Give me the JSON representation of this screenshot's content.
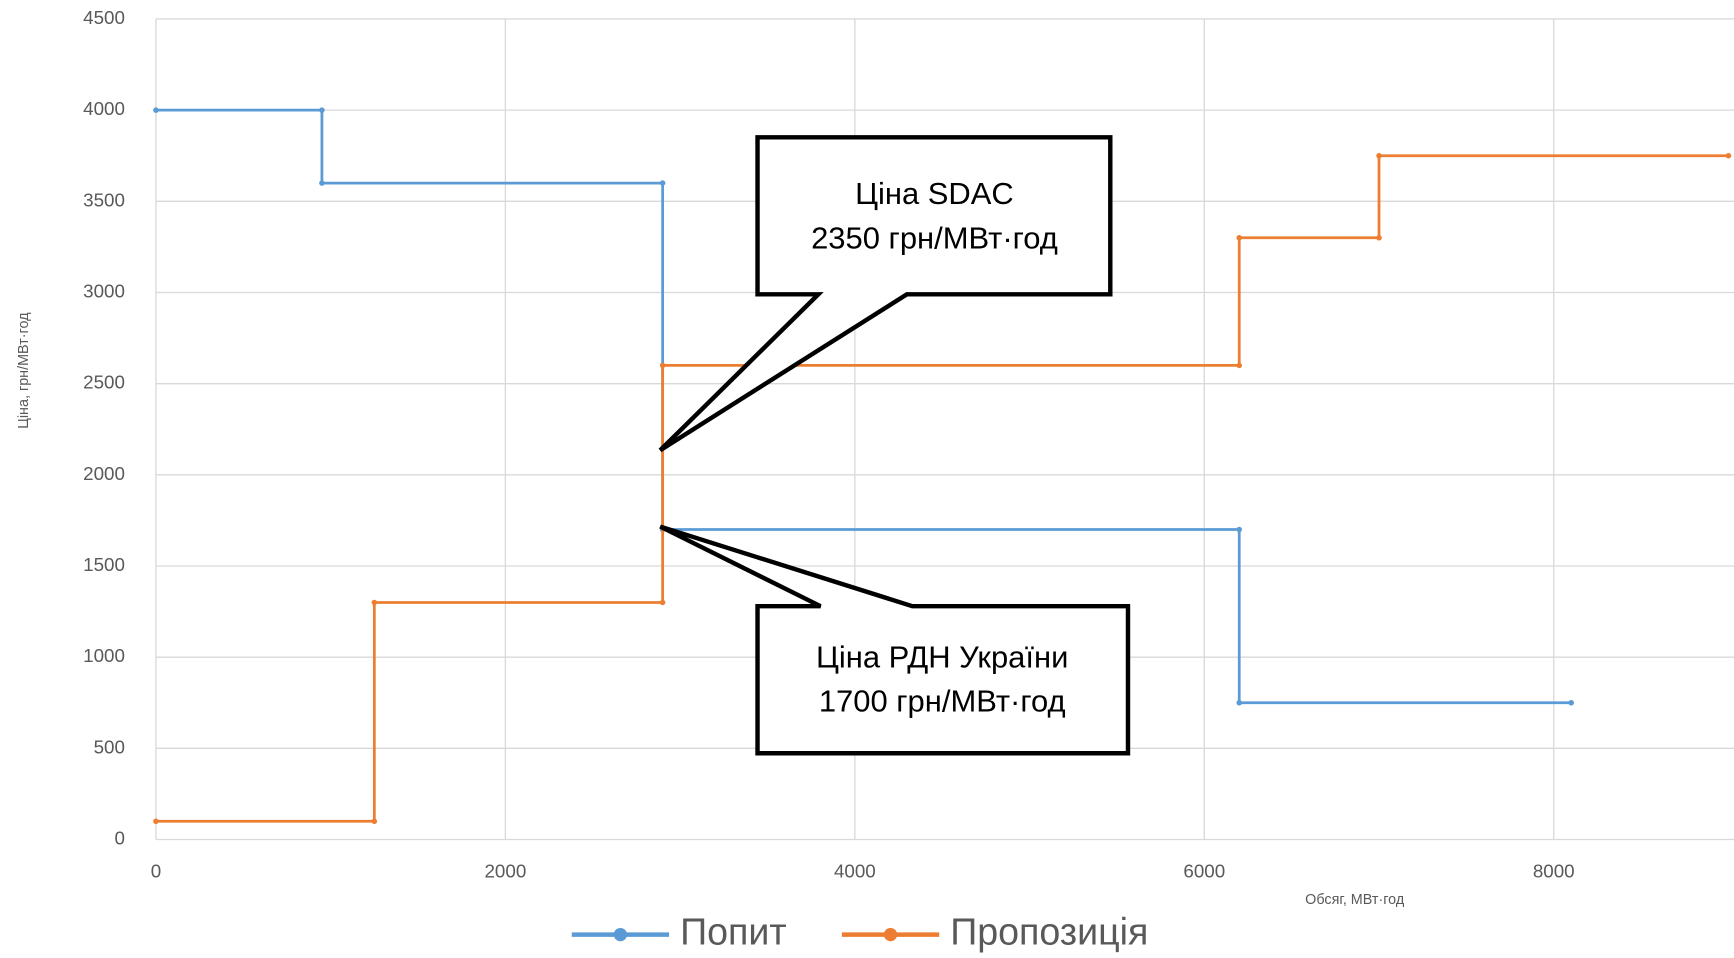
{
  "chart_data": {
    "type": "line",
    "x_label": "Обсяг, МВт·год",
    "y_label": "Ціна, грн/МВт·год",
    "xlim": [
      0,
      9000
    ],
    "xticks": [
      0,
      2000,
      4000,
      6000,
      8000
    ],
    "ylim": [
      0,
      4500
    ],
    "yticks": [
      0,
      500,
      1000,
      1500,
      2000,
      2500,
      3000,
      3500,
      4000,
      4500
    ],
    "grid": true,
    "legend": "bottom",
    "series": [
      {
        "name": "Попит",
        "color": "#5b9bd5",
        "x": [
          0,
          950,
          950,
          2900,
          2900,
          6200,
          6200,
          8100
        ],
        "values": [
          4000,
          4000,
          3600,
          3600,
          1700,
          1700,
          750,
          750
        ]
      },
      {
        "name": "Пропозиція",
        "color": "#ed7d31",
        "x": [
          0,
          1250,
          1250,
          2900,
          2900,
          6200,
          6200,
          7000,
          7000,
          9000
        ],
        "values": [
          100,
          100,
          1300,
          1300,
          2600,
          2600,
          3300,
          3300,
          3750,
          3750
        ]
      }
    ],
    "annotations": [
      {
        "lines": [
          "Ціна SDAC",
          "2350 грн/МВт·год"
        ]
      },
      {
        "lines": [
          "Ціна РДН України",
          "1700 грн/МВт·год"
        ]
      }
    ]
  }
}
